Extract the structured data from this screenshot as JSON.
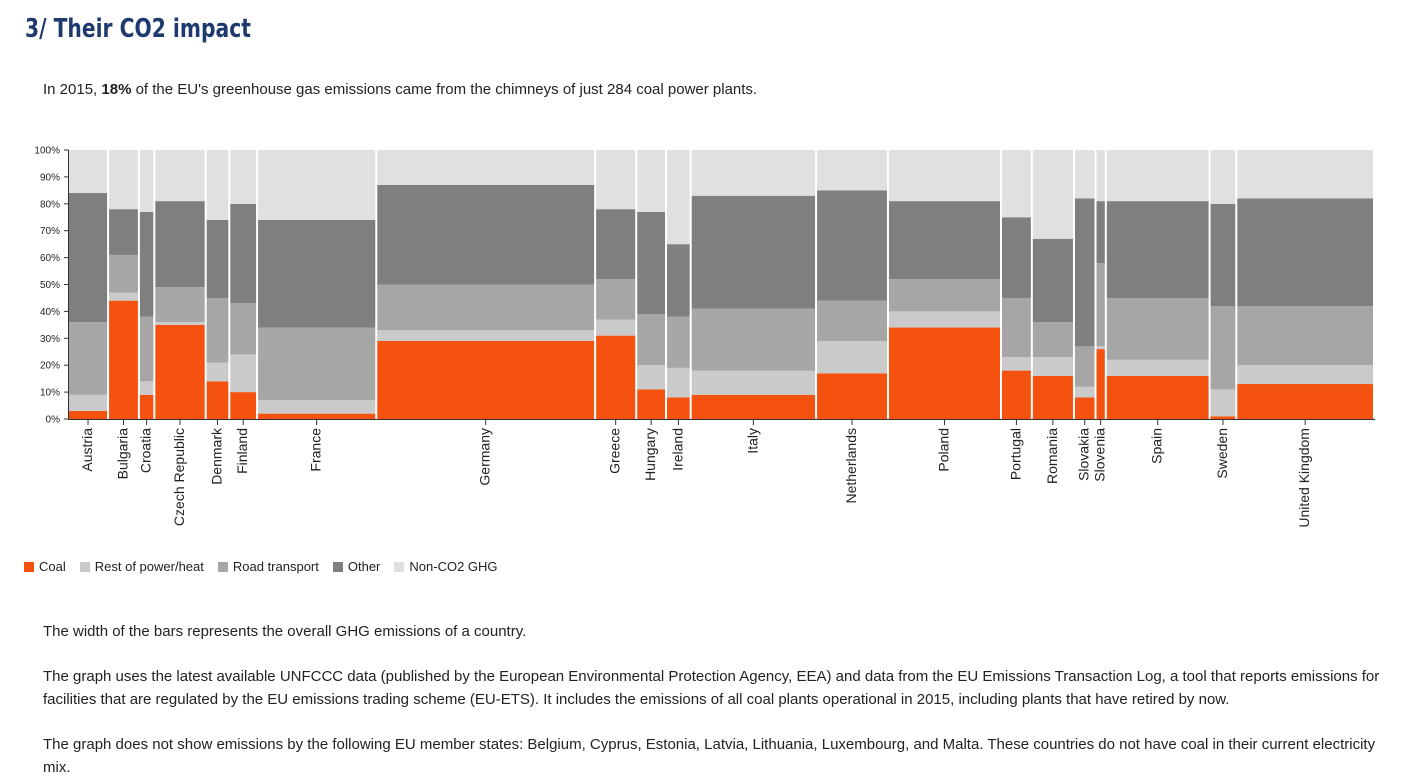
{
  "heading": "3/ Their CO2 impact",
  "intro": {
    "before": "In 2015, ",
    "highlight": "18%",
    "after": " of the EU's greenhouse gas emissions came from the chimneys of just 284 coal power plants."
  },
  "notes": [
    "The width of the bars represents the overall GHG emissions of a country.",
    "The graph uses the latest available UNFCCC data (published by the European Environmental Protection Agency, EEA) and data from the EU Emissions Transaction Log, a tool that reports emissions for facilities that are regulated by the EU emissions trading scheme (EU-ETS). It includes the emissions of all coal plants operational in 2015, including plants that have retired by now.",
    "The graph does not show emissions by the following EU member states: Belgium, Cyprus, Estonia, Latvia, Lithuania, Luxembourg, and Malta. These countries do not have coal in their current electricity mix."
  ],
  "chart_data": {
    "type": "bar",
    "variant": "marimekko stacked 100%",
    "y_ticks": [
      "0%",
      "10%",
      "20%",
      "30%",
      "40%",
      "50%",
      "60%",
      "70%",
      "80%",
      "90%",
      "100%"
    ],
    "ylim": [
      0,
      100
    ],
    "grid": false,
    "legend_position": "bottom-left",
    "series": [
      {
        "name": "Coal",
        "color": "#f5520f"
      },
      {
        "name": "Rest of power/heat",
        "color": "#cacaca"
      },
      {
        "name": "Road transport",
        "color": "#a6a6a6"
      },
      {
        "name": "Other",
        "color": "#7f7f7f"
      },
      {
        "name": "Non-CO2 GHG",
        "color": "#e0e0e0"
      }
    ],
    "countries": [
      {
        "name": "Austria",
        "width": 39,
        "values": [
          3,
          6,
          27,
          48,
          16
        ]
      },
      {
        "name": "Bulgaria",
        "width": 30,
        "values": [
          44,
          3,
          14,
          17,
          22
        ]
      },
      {
        "name": "Croatia",
        "width": 15,
        "values": [
          9,
          5,
          24,
          39,
          23
        ]
      },
      {
        "name": "Czech Republic",
        "width": 50,
        "values": [
          35,
          1,
          13,
          32,
          19
        ]
      },
      {
        "name": "Denmark",
        "width": 23,
        "values": [
          14,
          7,
          24,
          29,
          26
        ]
      },
      {
        "name": "Finland",
        "width": 27,
        "values": [
          10,
          14,
          19,
          37,
          20
        ]
      },
      {
        "name": "France",
        "width": 116,
        "values": [
          2,
          5,
          27,
          40,
          26
        ]
      },
      {
        "name": "Germany",
        "width": 213,
        "values": [
          29,
          4,
          17,
          37,
          13
        ]
      },
      {
        "name": "Greece",
        "width": 40,
        "values": [
          31,
          6,
          15,
          26,
          22
        ]
      },
      {
        "name": "Hungary",
        "width": 29,
        "values": [
          11,
          9,
          19,
          38,
          23
        ]
      },
      {
        "name": "Ireland",
        "width": 24,
        "values": [
          8,
          11,
          19,
          27,
          35
        ]
      },
      {
        "name": "Italy",
        "width": 122,
        "values": [
          9,
          9,
          23,
          42,
          17
        ]
      },
      {
        "name": "Netherlands",
        "width": 70,
        "values": [
          17,
          12,
          15,
          41,
          15
        ]
      },
      {
        "name": "Poland",
        "width": 110,
        "values": [
          34,
          6,
          12,
          29,
          19
        ]
      },
      {
        "name": "Portugal",
        "width": 30,
        "values": [
          18,
          5,
          22,
          30,
          25
        ]
      },
      {
        "name": "Romania",
        "width": 41,
        "values": [
          16,
          7,
          13,
          31,
          33
        ]
      },
      {
        "name": "Slovakia",
        "width": 21,
        "values": [
          8,
          4,
          15,
          55,
          18
        ]
      },
      {
        "name": "Slovenia",
        "width": 10,
        "values": [
          26,
          1,
          31,
          23,
          19
        ]
      },
      {
        "name": "Spain",
        "width": 101,
        "values": [
          16,
          6,
          23,
          36,
          19
        ]
      },
      {
        "name": "Sweden",
        "width": 26,
        "values": [
          1,
          10,
          31,
          38,
          20
        ]
      },
      {
        "name": "United Kingdom",
        "width": 134,
        "values": [
          13,
          7,
          22,
          40,
          18
        ]
      }
    ]
  }
}
